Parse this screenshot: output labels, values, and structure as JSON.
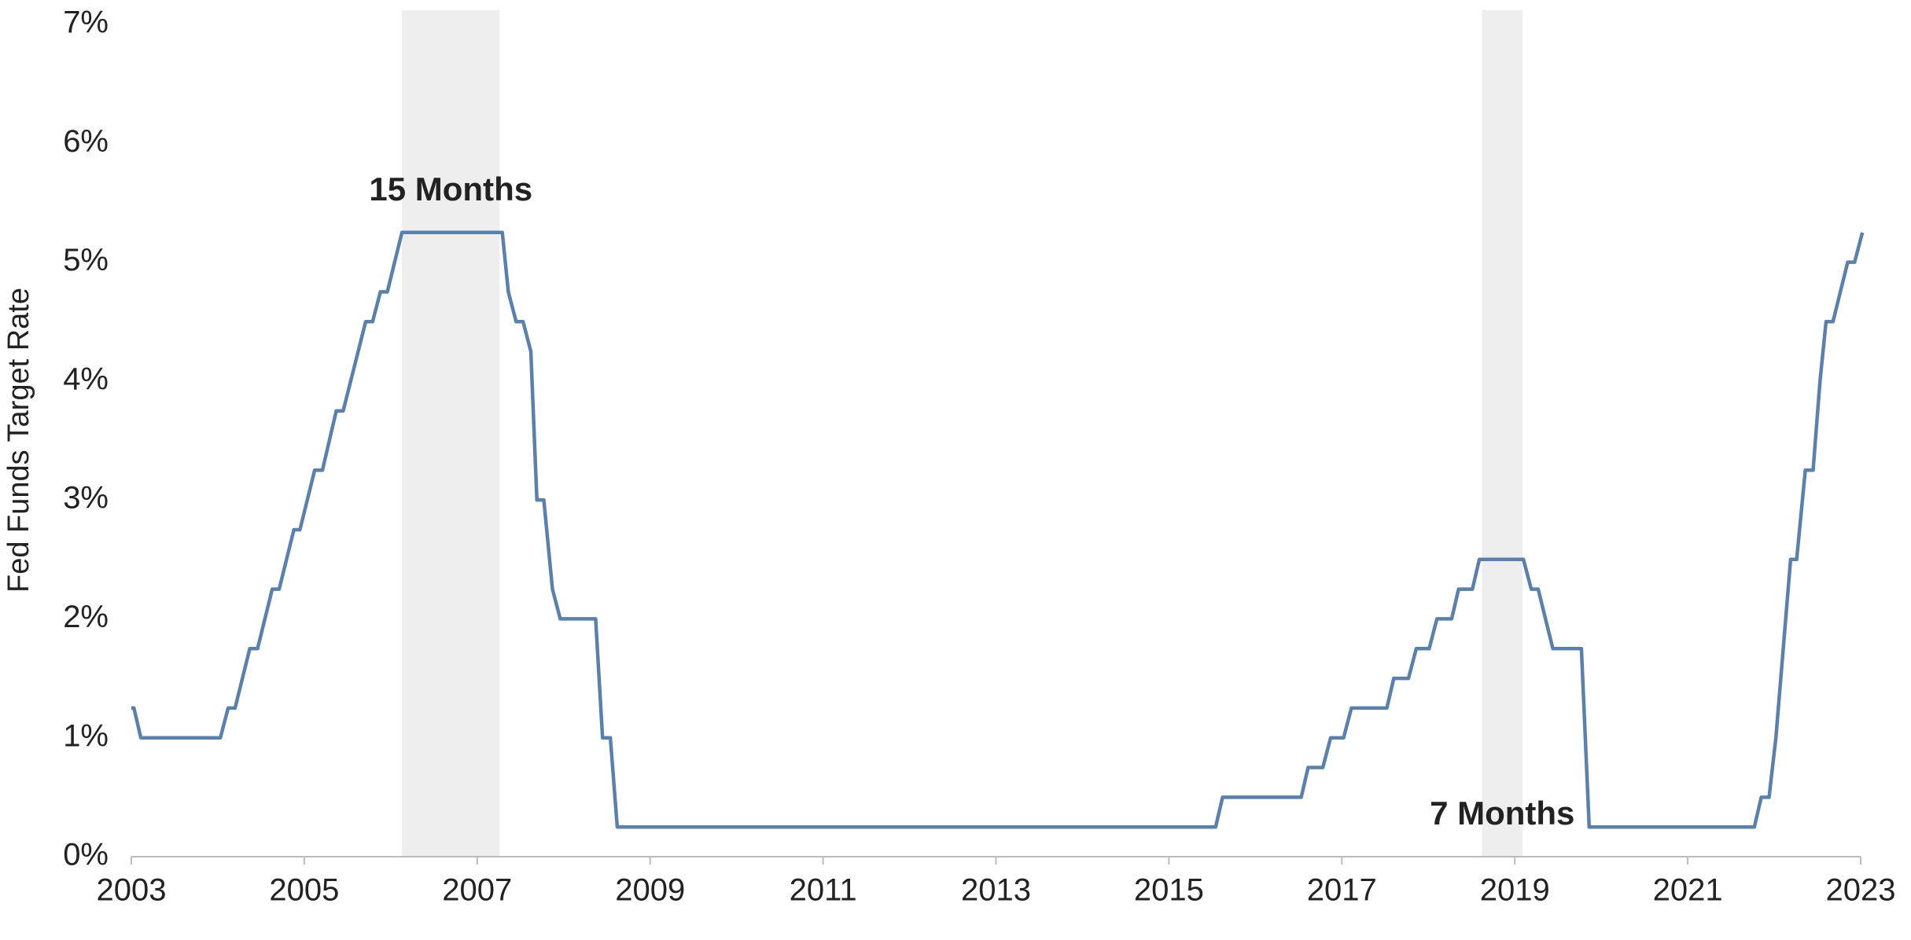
{
  "chart_data": {
    "type": "line",
    "y_label": "Fed Funds Target Rate",
    "xlim": [
      2003,
      2023
    ],
    "xticks": [
      2003,
      2005,
      2007,
      2009,
      2011,
      2013,
      2015,
      2017,
      2019,
      2021,
      2023
    ],
    "ylim": [
      0,
      7
    ],
    "yticks": [
      {
        "value": 0,
        "label": "0%"
      },
      {
        "value": 1,
        "label": "1%"
      },
      {
        "value": 2,
        "label": "2%"
      },
      {
        "value": 3,
        "label": "3%"
      },
      {
        "value": 4,
        "label": "4%"
      },
      {
        "value": 5,
        "label": "5%"
      },
      {
        "value": 6,
        "label": "6%"
      },
      {
        "value": 7,
        "label": "7%"
      }
    ],
    "grid": false,
    "shaded": [
      {
        "start": 2006.13,
        "end": 2007.26,
        "label": "15 Months",
        "color": "#eeeeee"
      },
      {
        "start": 2018.62,
        "end": 2019.09,
        "label": "7 Months",
        "color": "#eeeeee"
      }
    ],
    "series": [
      {
        "color": "#5b80aa",
        "x": [
          2003.0,
          2003.03,
          2003.11,
          2004.03,
          2004.12,
          2004.2,
          2004.37,
          2004.46,
          2004.63,
          2004.71,
          2004.88,
          2004.95,
          2005.12,
          2005.21,
          2005.37,
          2005.45,
          2005.71,
          2005.79,
          2005.88,
          2005.96,
          2006.13,
          2007.29,
          2007.36,
          2007.45,
          2007.53,
          2007.62,
          2007.69,
          2007.77,
          2007.87,
          2007.96,
          2008.37,
          2008.45,
          2008.54,
          2008.62,
          2015.54,
          2015.62,
          2016.53,
          2016.61,
          2016.78,
          2016.87,
          2017.02,
          2017.11,
          2017.52,
          2017.6,
          2017.77,
          2017.86,
          2018.01,
          2018.1,
          2018.27,
          2018.35,
          2018.51,
          2018.59,
          2019.1,
          2019.19,
          2019.27,
          2019.44,
          2019.77,
          2019.86,
          2021.77,
          2021.85,
          2021.94,
          2022.02,
          2022.19,
          2022.26,
          2022.36,
          2022.45,
          2022.53,
          2022.6,
          2022.68,
          2022.85,
          2022.93,
          2023.02
        ],
        "values": [
          1.25,
          1.25,
          1.0,
          1.0,
          1.25,
          1.25,
          1.75,
          1.75,
          2.25,
          2.25,
          2.75,
          2.75,
          3.25,
          3.25,
          3.75,
          3.75,
          4.5,
          4.5,
          4.75,
          4.75,
          5.25,
          5.25,
          4.75,
          4.5,
          4.5,
          4.25,
          3.0,
          3.0,
          2.25,
          2.0,
          2.0,
          1.0,
          1.0,
          0.25,
          0.25,
          0.5,
          0.5,
          0.75,
          0.75,
          1.0,
          1.0,
          1.25,
          1.25,
          1.5,
          1.5,
          1.75,
          1.75,
          2.0,
          2.0,
          2.25,
          2.25,
          2.5,
          2.5,
          2.25,
          2.25,
          1.75,
          1.75,
          0.25,
          0.25,
          0.5,
          0.5,
          1.0,
          2.5,
          2.5,
          3.25,
          3.25,
          4.0,
          4.5,
          4.5,
          5.0,
          5.0,
          5.25
        ]
      }
    ]
  }
}
